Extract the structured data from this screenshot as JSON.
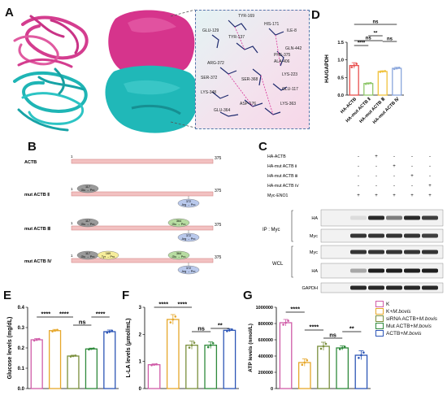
{
  "panel_labels": {
    "A": "A",
    "B": "B",
    "C": "C",
    "D": "D",
    "E": "E",
    "F": "F",
    "G": "G"
  },
  "structure_labels": [
    "TYR-169",
    "HIS-171",
    "ILE-8",
    "GLU-129",
    "TYR-137",
    "GLN-442",
    "PHE-375",
    "ALA-406",
    "ARG-372",
    "SER-368",
    "LYS-223",
    "SER-372",
    "GLU-117",
    "LYS-348",
    "ASP-176",
    "LYS-363",
    "GLU-364"
  ],
  "panel_b": {
    "rows": [
      {
        "label": "ACTB",
        "start": "1",
        "end": "375",
        "muts": []
      },
      {
        "label": "mut ACTB Ⅱ",
        "start": "1",
        "end": "375",
        "muts": [
          {
            "num": "117",
            "text": "Glu → Pro",
            "color": "#9a9a9a",
            "below": false
          },
          {
            "num": "372",
            "text": "Arg → Pro",
            "color": "#b9c9ec",
            "below": true
          }
        ]
      },
      {
        "label": "mut ACTB Ⅲ",
        "start": "1",
        "end": "375",
        "muts": [
          {
            "num": "117",
            "text": "Glu → Pro",
            "color": "#9a9a9a",
            "below": false
          },
          {
            "num": "364",
            "text": "Glu → Pro",
            "color": "#b7dca1",
            "below": false
          },
          {
            "num": "372",
            "text": "Arg → Pro",
            "color": "#b9c9ec",
            "below": true
          }
        ]
      },
      {
        "label": "mut ACTB Ⅳ",
        "start": "1",
        "end": "375",
        "muts": [
          {
            "num": "117",
            "text": "Glu → Pro",
            "color": "#9a9a9a",
            "below": false
          },
          {
            "num": "169",
            "text": "Tyr → Pro",
            "color": "#f6ed9a",
            "below": false
          },
          {
            "num": "364",
            "text": "Glu → Pro",
            "color": "#b7dca1",
            "below": false
          },
          {
            "num": "372",
            "text": "Arg → Pro",
            "color": "#b9c9ec",
            "below": true
          }
        ]
      }
    ]
  },
  "panel_c": {
    "conditions": [
      "HA-ACTB",
      "HA-mut ACTB Ⅱ",
      "HA-mut ACTB Ⅲ",
      "HA-mut ACTB Ⅳ",
      "Myc-ENO1"
    ],
    "signs": [
      [
        "-",
        "+",
        "-",
        "-",
        "-"
      ],
      [
        "-",
        "-",
        "+",
        "-",
        "-"
      ],
      [
        "-",
        "-",
        "-",
        "+",
        "-"
      ],
      [
        "-",
        "-",
        "-",
        "-",
        "+"
      ],
      [
        "+",
        "+",
        "+",
        "+",
        "+"
      ]
    ],
    "ip_label": "IP : Myc",
    "wcl_label": "WCL",
    "blots": [
      {
        "name": "HA",
        "group": "ip",
        "intensities": [
          0.05,
          0.9,
          0.5,
          0.9,
          0.8
        ]
      },
      {
        "name": "Myc",
        "group": "ip",
        "intensities": [
          0.85,
          0.85,
          0.85,
          0.85,
          0.8
        ]
      },
      {
        "name": "Myc",
        "group": "wcl",
        "intensities": [
          0.85,
          0.85,
          0.85,
          0.85,
          0.85
        ]
      },
      {
        "name": "HA",
        "group": "wcl",
        "intensities": [
          0.3,
          0.95,
          0.95,
          0.95,
          0.95
        ]
      },
      {
        "name": "GAPDH",
        "group": "wcl",
        "intensities": [
          0.9,
          0.9,
          0.9,
          0.9,
          0.9
        ]
      }
    ]
  },
  "charts": {
    "D": {
      "chart_data": {
        "type": "bar",
        "ylabel": "HA/GAPDH",
        "ylim": [
          0,
          1.5
        ],
        "yticks": [
          "0.0",
          "0.5",
          "1.0",
          "1.5"
        ],
        "categories": [
          "HA-ACTB",
          "HA-mut ACTB Ⅱ",
          "HA-mut ACTB Ⅲ",
          "HA-mut ACTB Ⅳ"
        ],
        "values": [
          0.84,
          0.33,
          0.67,
          0.76
        ],
        "errors": [
          0.08,
          0.02,
          0.02,
          0.03
        ],
        "colors": [
          "#e8504f",
          "#8fc76b",
          "#f0c23c",
          "#8aa6dc"
        ],
        "sig": [
          {
            "a": 0,
            "b": 1,
            "text": "****"
          },
          {
            "a": 0,
            "b": 2,
            "text": "ns"
          },
          {
            "a": 0,
            "b": 3,
            "text": "ns"
          },
          {
            "a": 1,
            "b": 2,
            "text": "**"
          },
          {
            "a": 2,
            "b": 3,
            "text": "ns"
          }
        ]
      }
    },
    "E": {
      "chart_data": {
        "type": "bar",
        "ylabel": "Glucose levels (mg/dL)",
        "ylim": [
          0,
          0.4
        ],
        "yticks": [
          "0.0",
          "0.1",
          "0.2",
          "0.3",
          "0.4"
        ],
        "values": [
          0.24,
          0.285,
          0.16,
          0.195,
          0.28
        ],
        "errors": [
          0.006,
          0.006,
          0.004,
          0.004,
          0.008
        ],
        "colors": [
          "#d05ca8",
          "#e6a72a",
          "#7a8f3c",
          "#2f8a3c",
          "#2d56b6"
        ],
        "sig": [
          {
            "a": 0,
            "b": 1,
            "text": "****"
          },
          {
            "a": 1,
            "b": 2,
            "text": "****"
          },
          {
            "a": 2,
            "b": 3,
            "text": "ns"
          },
          {
            "a": 3,
            "b": 4,
            "text": "****"
          }
        ]
      }
    },
    "F": {
      "chart_data": {
        "type": "bar",
        "ylabel": "L-LA levels (μmol/mL)",
        "ylim": [
          0,
          3
        ],
        "yticks": [
          "0",
          "1",
          "2",
          "3"
        ],
        "values": [
          0.88,
          2.55,
          1.6,
          1.6,
          2.15
        ],
        "errors": [
          0.03,
          0.18,
          0.15,
          0.12,
          0.05
        ],
        "colors": [
          "#d05ca8",
          "#e6a72a",
          "#7a8f3c",
          "#2f8a3c",
          "#2d56b6"
        ],
        "sig": [
          {
            "a": 0,
            "b": 1,
            "text": "****"
          },
          {
            "a": 1,
            "b": 2,
            "text": "****"
          },
          {
            "a": 2,
            "b": 3,
            "text": "ns"
          },
          {
            "a": 3,
            "b": 4,
            "text": "**"
          }
        ]
      }
    },
    "G": {
      "chart_data": {
        "type": "bar",
        "ylabel": "ATP levels (nmol/L)",
        "ylim": [
          0,
          1000000
        ],
        "yticks": [
          "0",
          "200000",
          "400000",
          "600000",
          "800000",
          "1000000"
        ],
        "values": [
          810000,
          320000,
          520000,
          500000,
          410000
        ],
        "errors": [
          40000,
          45000,
          50000,
          25000,
          55000
        ],
        "colors": [
          "#d05ca8",
          "#e6a72a",
          "#7a8f3c",
          "#2f8a3c",
          "#2d56b6"
        ],
        "sig": [
          {
            "a": 0,
            "b": 1,
            "text": "****"
          },
          {
            "a": 1,
            "b": 2,
            "text": "****"
          },
          {
            "a": 2,
            "b": 3,
            "text": "ns"
          },
          {
            "a": 3,
            "b": 4,
            "text": "**"
          }
        ]
      }
    }
  },
  "legend": {
    "items": [
      {
        "prefix": "K",
        "italic": "",
        "color": "#d05ca8"
      },
      {
        "prefix": "K+",
        "italic": "M.bovis",
        "color": "#e6a72a"
      },
      {
        "prefix": "siRNA ACTB+",
        "italic": "M.bovis",
        "color": "#7a8f3c"
      },
      {
        "prefix": "Mut ACTB+",
        "italic": "M.bovis",
        "color": "#2f8a3c"
      },
      {
        "prefix": "ACTB+",
        "italic": "M.bovis",
        "color": "#2d56b6"
      }
    ]
  }
}
